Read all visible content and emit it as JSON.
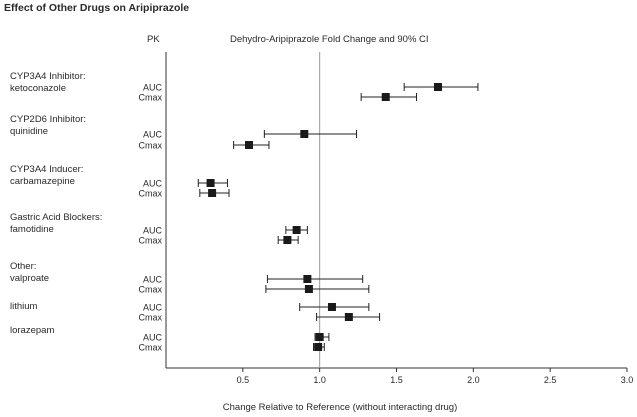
{
  "page": {
    "title": "Effect of Other Drugs on Aripiprazole"
  },
  "chart_data": {
    "type": "forest",
    "pk_header": "PK",
    "legend_header": "Dehydro-Aripiprazole Fold Change and 90% CI",
    "xlabel": "Change Relative to Reference (without interacting drug)",
    "xlim": [
      0.0,
      3.0
    ],
    "x_ticks": [
      "0.5",
      "1.0",
      "1.5",
      "2.0",
      "2.5",
      "3.0"
    ],
    "reference_line": 1.0,
    "groups": [
      {
        "label_lines": [
          "CYP3A4 Inhibitor:",
          "ketoconazole"
        ],
        "rows": [
          {
            "pk": "AUC",
            "estimate": 1.77,
            "ci": [
              1.55,
              2.03
            ]
          },
          {
            "pk": "Cmax",
            "estimate": 1.43,
            "ci": [
              1.27,
              1.63
            ]
          }
        ]
      },
      {
        "label_lines": [
          "CYP2D6 Inhibitor:",
          "quinidine"
        ],
        "rows": [
          {
            "pk": "AUC",
            "estimate": 0.9,
            "ci": [
              0.64,
              1.24
            ]
          },
          {
            "pk": "Cmax",
            "estimate": 0.54,
            "ci": [
              0.44,
              0.67
            ]
          }
        ]
      },
      {
        "label_lines": [
          "CYP3A4 Inducer:",
          "carbamazepine"
        ],
        "rows": [
          {
            "pk": "AUC",
            "estimate": 0.29,
            "ci": [
              0.21,
              0.4
            ]
          },
          {
            "pk": "Cmax",
            "estimate": 0.3,
            "ci": [
              0.22,
              0.41
            ]
          }
        ]
      },
      {
        "label_lines": [
          "Gastric Acid Blockers:",
          "famotidine"
        ],
        "rows": [
          {
            "pk": "AUC",
            "estimate": 0.85,
            "ci": [
              0.78,
              0.92
            ]
          },
          {
            "pk": "Cmax",
            "estimate": 0.79,
            "ci": [
              0.73,
              0.86
            ]
          }
        ]
      },
      {
        "label_lines": [
          "Other:",
          "valproate"
        ],
        "rows": [
          {
            "pk": "AUC",
            "estimate": 0.92,
            "ci": [
              0.66,
              1.28
            ]
          },
          {
            "pk": "Cmax",
            "estimate": 0.93,
            "ci": [
              0.65,
              1.32
            ]
          }
        ]
      },
      {
        "label_lines": [
          "lithium"
        ],
        "rows": [
          {
            "pk": "AUC",
            "estimate": 1.08,
            "ci": [
              0.87,
              1.32
            ]
          },
          {
            "pk": "Cmax",
            "estimate": 1.19,
            "ci": [
              0.98,
              1.39
            ]
          }
        ]
      },
      {
        "label_lines": [
          "lorazepam"
        ],
        "rows": [
          {
            "pk": "AUC",
            "estimate": 1.0,
            "ci": [
              0.97,
              1.06
            ]
          },
          {
            "pk": "Cmax",
            "estimate": 0.99,
            "ci": [
              0.96,
              1.03
            ]
          }
        ]
      }
    ]
  }
}
